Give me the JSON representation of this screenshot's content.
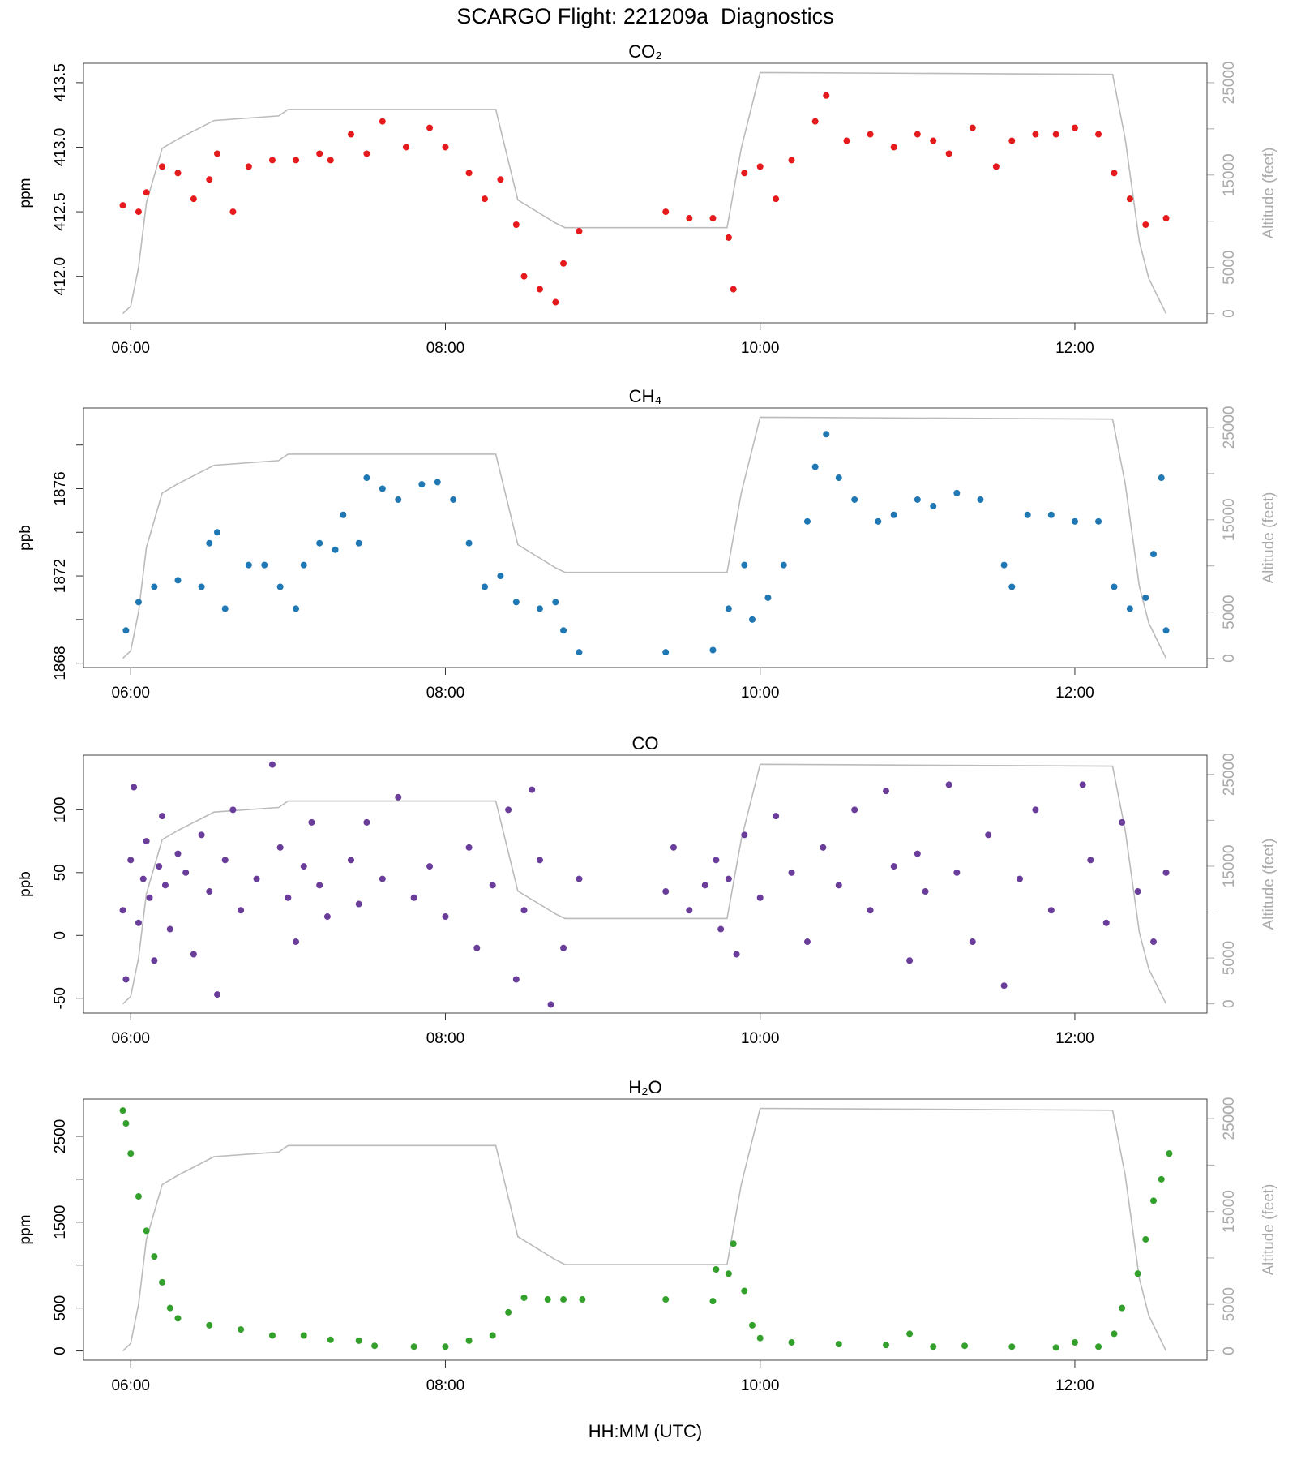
{
  "title": "SCARGO Flight: 221209a  Diagnostics",
  "xlabel": "HH:MM (UTC)",
  "altitude": {
    "label": "Altitude (feet)",
    "color": "#bbbbbb",
    "x": [
      5.95,
      6.0,
      6.05,
      6.1,
      6.2,
      6.3,
      6.53,
      6.94,
      7.0,
      8.32,
      8.46,
      8.7,
      8.76,
      9.79,
      9.88,
      10.0,
      12.24,
      12.32,
      12.41,
      12.47,
      12.58
    ],
    "values": [
      0,
      800,
      5000,
      12000,
      17900,
      18900,
      20900,
      21400,
      22100,
      22100,
      12300,
      9800,
      9300,
      9300,
      17900,
      26100,
      25900,
      18900,
      7800,
      3800,
      0
    ],
    "y2lim": [
      -1000,
      27100
    ],
    "y2ticks": [
      0,
      5000,
      15000,
      25000
    ],
    "y2minor_ticks": [
      10000,
      20000
    ]
  },
  "chart_data": [
    {
      "type": "scatter",
      "title": "CO₂",
      "ylabel": "ppm",
      "color": "#e41a1c",
      "xlim": [
        5.7,
        12.84
      ],
      "xticks": [
        {
          "value": 6,
          "label": "06:00"
        },
        {
          "value": 8,
          "label": "08:00"
        },
        {
          "value": 10,
          "label": "10:00"
        },
        {
          "value": 12,
          "label": "12:00"
        }
      ],
      "ylim": [
        411.64,
        413.65
      ],
      "yticks": [
        {
          "value": 412,
          "label": "412.0"
        },
        412.5,
        {
          "value": 413,
          "label": "413.0"
        },
        413.5
      ],
      "yminor_ticks": [],
      "x": [
        5.95,
        6.05,
        6.1,
        6.2,
        6.3,
        6.4,
        6.5,
        6.55,
        6.65,
        6.75,
        6.9,
        7.05,
        7.2,
        7.27,
        7.4,
        7.5,
        7.6,
        7.75,
        7.9,
        8.0,
        8.15,
        8.25,
        8.35,
        8.45,
        8.5,
        8.6,
        8.7,
        8.75,
        8.85,
        9.4,
        9.55,
        9.7,
        9.8,
        9.83,
        9.9,
        10.0,
        10.1,
        10.2,
        10.35,
        10.42,
        10.55,
        10.7,
        10.85,
        11.0,
        11.1,
        11.2,
        11.35,
        11.5,
        11.6,
        11.75,
        11.88,
        12.0,
        12.15,
        12.25,
        12.35,
        12.45,
        12.58
      ],
      "values": [
        412.55,
        412.5,
        412.65,
        412.85,
        412.8,
        412.6,
        412.75,
        412.95,
        412.5,
        412.85,
        412.9,
        412.9,
        412.95,
        412.9,
        413.1,
        412.95,
        413.2,
        413.0,
        413.15,
        413.0,
        412.8,
        412.6,
        412.75,
        412.4,
        412.0,
        411.9,
        411.8,
        412.1,
        412.35,
        412.5,
        412.45,
        412.45,
        412.3,
        411.9,
        412.8,
        412.85,
        412.6,
        412.9,
        413.2,
        413.4,
        413.05,
        413.1,
        413.0,
        413.1,
        413.05,
        412.95,
        413.15,
        412.85,
        413.05,
        413.1,
        413.1,
        413.15,
        413.1,
        412.8,
        412.6,
        412.4,
        412.45
      ]
    },
    {
      "type": "scatter",
      "title": "CH₄",
      "ylabel": "ppb",
      "color": "#1f78b4",
      "xlim": [
        5.7,
        12.84
      ],
      "xticks": [
        {
          "value": 6,
          "label": "06:00"
        },
        {
          "value": 8,
          "label": "08:00"
        },
        {
          "value": 10,
          "label": "10:00"
        },
        {
          "value": 12,
          "label": "12:00"
        }
      ],
      "ylim": [
        1867.8,
        1879.7
      ],
      "yticks": [
        1868,
        1872,
        1876
      ],
      "yminor_ticks": [
        1870,
        1874,
        1878
      ],
      "x": [
        5.97,
        6.05,
        6.15,
        6.3,
        6.45,
        6.5,
        6.55,
        6.6,
        6.75,
        6.85,
        6.95,
        7.05,
        7.1,
        7.2,
        7.3,
        7.35,
        7.45,
        7.5,
        7.6,
        7.7,
        7.85,
        7.95,
        8.05,
        8.15,
        8.25,
        8.35,
        8.45,
        8.6,
        8.7,
        8.75,
        8.85,
        9.4,
        9.7,
        9.8,
        9.9,
        9.95,
        10.05,
        10.15,
        10.3,
        10.35,
        10.42,
        10.5,
        10.6,
        10.75,
        10.85,
        11.0,
        11.1,
        11.25,
        11.4,
        11.55,
        11.6,
        11.7,
        11.85,
        12.0,
        12.15,
        12.25,
        12.35,
        12.45,
        12.5,
        12.55,
        12.58
      ],
      "values": [
        1869.5,
        1870.8,
        1871.5,
        1871.8,
        1871.5,
        1873.5,
        1874.0,
        1870.5,
        1872.5,
        1872.5,
        1871.5,
        1870.5,
        1872.5,
        1873.5,
        1873.2,
        1874.8,
        1873.5,
        1876.5,
        1876.0,
        1875.5,
        1876.2,
        1876.3,
        1875.5,
        1873.5,
        1871.5,
        1872.0,
        1870.8,
        1870.5,
        1870.8,
        1869.5,
        1868.5,
        1868.5,
        1868.6,
        1870.5,
        1872.5,
        1870.0,
        1871.0,
        1872.5,
        1874.5,
        1877.0,
        1878.5,
        1876.5,
        1875.5,
        1874.5,
        1874.8,
        1875.5,
        1875.2,
        1875.8,
        1875.5,
        1872.5,
        1871.5,
        1874.8,
        1874.8,
        1874.5,
        1874.5,
        1871.5,
        1870.5,
        1871.0,
        1873.0,
        1876.5,
        1869.5
      ]
    },
    {
      "type": "scatter",
      "title": "CO",
      "ylabel": "ppb",
      "color": "#6a3d9a",
      "xlim": [
        5.7,
        12.84
      ],
      "xticks": [
        {
          "value": 6,
          "label": "06:00"
        },
        {
          "value": 8,
          "label": "08:00"
        },
        {
          "value": 10,
          "label": "10:00"
        },
        {
          "value": 12,
          "label": "12:00"
        }
      ],
      "ylim": [
        -61.8,
        143.5
      ],
      "yticks": [
        -50,
        0,
        50,
        100
      ],
      "yminor_ticks": [],
      "x": [
        5.95,
        5.97,
        6.0,
        6.02,
        6.05,
        6.08,
        6.1,
        6.12,
        6.15,
        6.18,
        6.2,
        6.22,
        6.25,
        6.3,
        6.35,
        6.4,
        6.45,
        6.5,
        6.55,
        6.6,
        6.65,
        6.7,
        6.8,
        6.9,
        6.95,
        7.0,
        7.05,
        7.1,
        7.15,
        7.2,
        7.25,
        7.4,
        7.45,
        7.5,
        7.6,
        7.7,
        7.8,
        7.9,
        8.0,
        8.15,
        8.2,
        8.3,
        8.4,
        8.45,
        8.5,
        8.55,
        8.6,
        8.67,
        8.75,
        8.85,
        9.4,
        9.45,
        9.55,
        9.65,
        9.72,
        9.75,
        9.8,
        9.85,
        9.9,
        10.0,
        10.1,
        10.2,
        10.3,
        10.4,
        10.5,
        10.6,
        10.7,
        10.8,
        10.85,
        10.95,
        11.0,
        11.05,
        11.2,
        11.25,
        11.35,
        11.45,
        11.55,
        11.65,
        11.75,
        11.85,
        12.05,
        12.1,
        12.2,
        12.3,
        12.4,
        12.5,
        12.58
      ],
      "values": [
        20,
        -35,
        60,
        118,
        10,
        45,
        75,
        30,
        -20,
        55,
        95,
        40,
        5,
        65,
        50,
        -15,
        80,
        35,
        -47,
        60,
        100,
        20,
        45,
        136,
        70,
        30,
        -5,
        55,
        90,
        40,
        15,
        60,
        25,
        90,
        45,
        110,
        30,
        55,
        15,
        70,
        -10,
        40,
        100,
        -35,
        20,
        116,
        60,
        -55,
        -10,
        45,
        35,
        70,
        20,
        40,
        60,
        5,
        45,
        -15,
        80,
        30,
        95,
        50,
        -5,
        70,
        40,
        100,
        20,
        115,
        55,
        -20,
        65,
        35,
        120,
        50,
        -5,
        80,
        -40,
        45,
        100,
        20,
        120,
        60,
        10,
        90,
        35,
        -5,
        50
      ]
    },
    {
      "type": "scatter",
      "title": "H₂O",
      "ylabel": "ppm",
      "color": "#33a02c",
      "xlim": [
        5.7,
        12.84
      ],
      "xticks": [
        {
          "value": 6,
          "label": "06:00"
        },
        {
          "value": 8,
          "label": "08:00"
        },
        {
          "value": 10,
          "label": "10:00"
        },
        {
          "value": 12,
          "label": "12:00"
        }
      ],
      "ylim": [
        -108,
        2934
      ],
      "yticks": [
        0,
        500,
        1500,
        2500
      ],
      "yminor_ticks": [
        1000,
        2000
      ],
      "x": [
        5.95,
        5.97,
        6.0,
        6.05,
        6.1,
        6.15,
        6.2,
        6.25,
        6.3,
        6.5,
        6.7,
        6.9,
        7.1,
        7.27,
        7.45,
        7.55,
        7.8,
        8.0,
        8.15,
        8.3,
        8.4,
        8.5,
        8.65,
        8.75,
        8.87,
        9.4,
        9.7,
        9.72,
        9.8,
        9.83,
        9.9,
        9.95,
        10.0,
        10.2,
        10.5,
        10.8,
        10.95,
        11.1,
        11.3,
        11.6,
        11.88,
        12.0,
        12.15,
        12.25,
        12.3,
        12.4,
        12.45,
        12.5,
        12.55,
        12.6
      ],
      "values": [
        2800,
        2650,
        2300,
        1800,
        1400,
        1100,
        800,
        500,
        380,
        300,
        250,
        180,
        180,
        130,
        120,
        60,
        50,
        50,
        120,
        180,
        450,
        620,
        600,
        600,
        600,
        600,
        580,
        950,
        900,
        1250,
        700,
        300,
        150,
        100,
        80,
        70,
        200,
        50,
        60,
        50,
        40,
        100,
        50,
        200,
        500,
        900,
        1300,
        1750,
        2000,
        2300
      ]
    }
  ]
}
